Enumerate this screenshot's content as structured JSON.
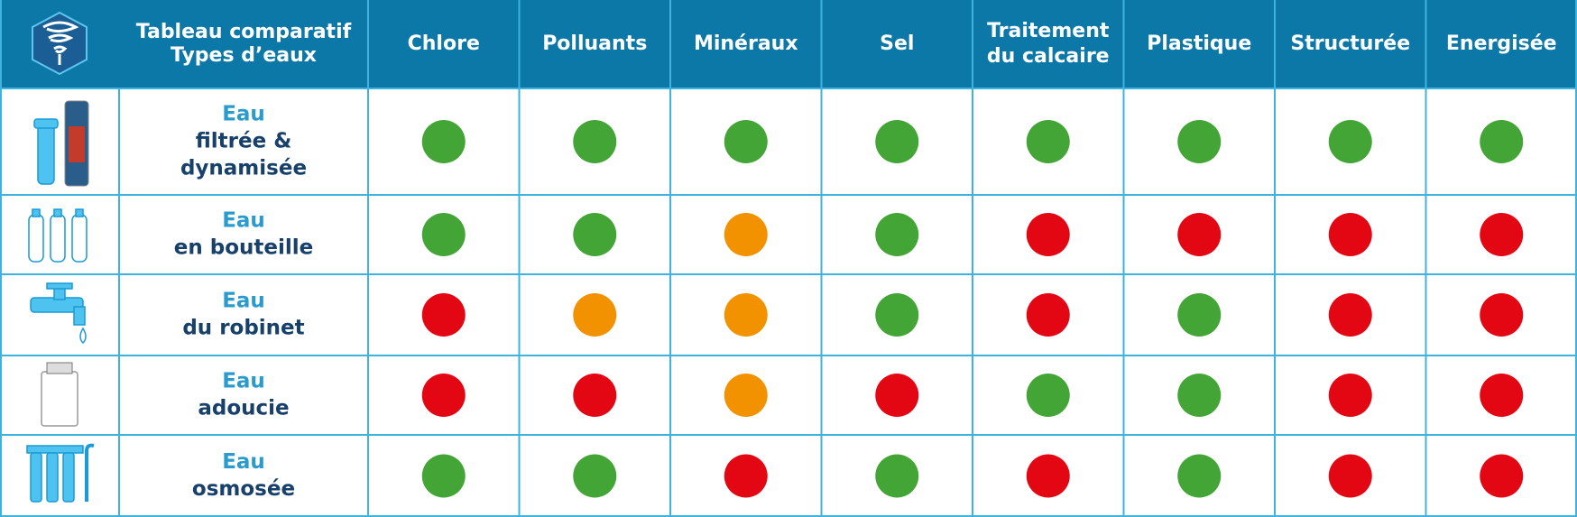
{
  "header": {
    "title": [
      "Tableau comparatif",
      "Types d’eaux"
    ]
  },
  "columns": [
    [
      "Chlore"
    ],
    [
      "Polluants"
    ],
    [
      "Minéraux"
    ],
    [
      "Sel"
    ],
    [
      "Traitement",
      "du calcaire"
    ],
    [
      "Plastique"
    ],
    [
      "Structurée"
    ],
    [
      "Energisée"
    ]
  ],
  "status_colors": {
    "good": "#43a535",
    "partial": "#f39200",
    "bad": "#e30613"
  },
  "rows": [
    {
      "label": [
        "Eau",
        "filtrée &",
        "dynamisée"
      ],
      "cells": [
        "good",
        "good",
        "good",
        "good",
        "good",
        "good",
        "good",
        "good"
      ]
    },
    {
      "label": [
        "Eau",
        "en bouteille"
      ],
      "cells": [
        "good",
        "good",
        "partial",
        "good",
        "bad",
        "bad",
        "bad",
        "bad"
      ]
    },
    {
      "label": [
        "Eau",
        "du robinet"
      ],
      "cells": [
        "bad",
        "partial",
        "partial",
        "good",
        "bad",
        "good",
        "bad",
        "bad"
      ]
    },
    {
      "label": [
        "Eau",
        "adoucie"
      ],
      "cells": [
        "bad",
        "bad",
        "partial",
        "bad",
        "good",
        "good",
        "bad",
        "bad"
      ]
    },
    {
      "label": [
        "Eau",
        "osmosée"
      ],
      "cells": [
        "good",
        "good",
        "bad",
        "good",
        "bad",
        "good",
        "bad",
        "bad"
      ]
    }
  ]
}
